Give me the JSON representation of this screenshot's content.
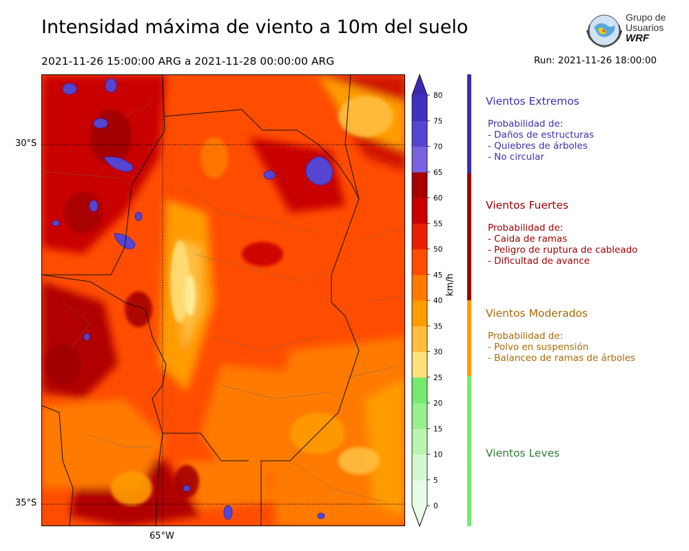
{
  "title": "Intensidad máxima de viento a 10m del suelo",
  "period": "2021-11-26 15:00:00 ARG  a  2021-11-28 00:00:00 ARG",
  "run": "Run: 2021-11-26 18:00:00",
  "logo": {
    "line1": "Grupo de",
    "line2": "Usuarios",
    "line3": "WRF"
  },
  "map": {
    "lat_labels": [
      "30°S",
      "35°S"
    ],
    "lon_labels": [
      "65°W"
    ]
  },
  "colorbar": {
    "unit": "km/h",
    "ticks": [
      "0",
      "5",
      "10",
      "15",
      "20",
      "25",
      "30",
      "35",
      "40",
      "45",
      "50",
      "55",
      "60",
      "65",
      "70",
      "75",
      "80"
    ],
    "colors": [
      "#e8fbe6",
      "#d3f8cf",
      "#b9f4b1",
      "#97ef8e",
      "#76ea70",
      "#ffe07a",
      "#ffbe40",
      "#ff9c00",
      "#ff7a00",
      "#ff4d00",
      "#e82000",
      "#c80000",
      "#a60000",
      "#7a63e0",
      "#5545d0",
      "#3f30c0",
      "#3a2ab0"
    ]
  },
  "categories": [
    {
      "title": "Vientos Extremos",
      "color": "#3a2eb0",
      "heading": "Probabilidad de:",
      "items": [
        "- Daños de estructuras",
        "- Quiebres de árboles",
        "- No circular"
      ]
    },
    {
      "title": "Vientos Fuertes",
      "color": "#a00000",
      "heading": "Probabilidad de:",
      "items": [
        "- Caida de ramas",
        "- Peligro de ruptura de cableado",
        "- Dificultad de avance"
      ]
    },
    {
      "title": "Vientos Moderados",
      "color": "#a86a00",
      "heading": "Probabilidad de:",
      "items": [
        "- Polvo en suspensión",
        "- Balanceo de ramas de árboles"
      ]
    },
    {
      "title": "Vientos Leves",
      "color": "#2e7d32",
      "heading": "",
      "items": []
    }
  ],
  "bar_colors": {
    "extremos": "#3a2eb0",
    "fuertes": "#a00000",
    "moderados": "#ff9c00",
    "leves": "#76ea70"
  }
}
